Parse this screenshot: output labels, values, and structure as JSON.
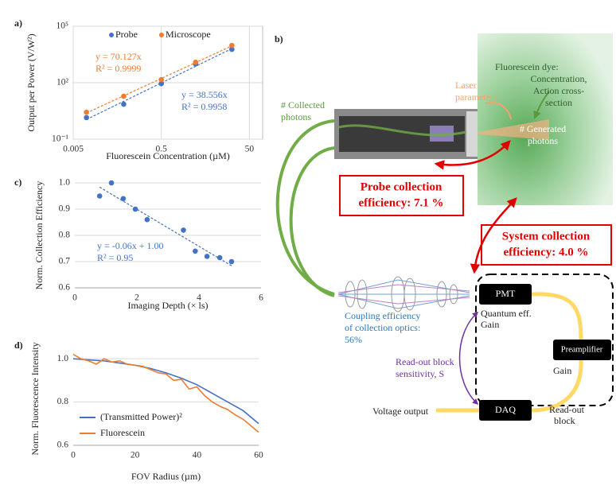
{
  "chart_data": [
    {
      "type": "scatter",
      "panel": "a)",
      "xlabel": "Fluorescein Concentration (µM)",
      "ylabel": "Output per Power (V/W²)",
      "xlog": true,
      "ylog": true,
      "xlim": [
        0.005,
        100
      ],
      "xticks": [
        0.005,
        0.5,
        50
      ],
      "ylim": [
        0.1,
        100000
      ],
      "yticks": [
        {
          "value": 0.1,
          "label": "10⁻¹"
        },
        {
          "value": 100,
          "label": "10²"
        },
        {
          "value": 100000,
          "label": "10⁵"
        }
      ],
      "grid": "both",
      "legend": "top",
      "trendline": true,
      "x": [
        0.01,
        0.07,
        0.5,
        3,
        20
      ],
      "series": [
        {
          "name": "Probe",
          "color": "#4472c4",
          "values": [
            1.4,
            7.2,
            89,
            1000,
            5900
          ],
          "equation": "y = 38.556x",
          "r2": "R² = 0.9958"
        },
        {
          "name": "Microscope",
          "color": "#ed7d31",
          "values": [
            2.7,
            19,
            145,
            1230,
            9500
          ],
          "equation": "y = 70.127x",
          "r2": "R² = 0.9999"
        }
      ]
    },
    {
      "type": "scatter",
      "panel": "c)",
      "xlabel": "Imaging Depth (× ls)",
      "ylabel": "Norm. Collection Efficiency",
      "xlim": [
        0,
        6
      ],
      "xticks": [
        0,
        2,
        4,
        6
      ],
      "ylim": [
        0.6,
        1.0
      ],
      "yticks": [
        0.6,
        0.7,
        0.8,
        0.9,
        {
          "value": 1,
          "label": "1.0"
        }
      ],
      "grid": "y",
      "trendline": true,
      "color": "#4472c4",
      "x": [
        0.8,
        1.18,
        1.56,
        1.95,
        2.33,
        3.5,
        3.88,
        4.26,
        4.67,
        5.05
      ],
      "values": [
        0.95,
        1.0,
        0.94,
        0.9,
        0.86,
        0.82,
        0.74,
        0.72,
        0.715,
        0.7
      ],
      "equation": "y = -0.06x + 1.00",
      "r2": "R² = 0.95"
    },
    {
      "type": "line",
      "panel": "d)",
      "xlabel": "FOV Radius (µm)",
      "ylabel": "Norm. Fluorescence Intensity",
      "xlim": [
        0,
        60
      ],
      "xticks": [
        0,
        20,
        40,
        60
      ],
      "ylim": [
        0.6,
        1.03
      ],
      "yticks": [
        0.6,
        0.8,
        {
          "value": 1,
          "label": "1.0"
        }
      ],
      "grid": "y",
      "legend": "lower left",
      "series": [
        {
          "name": "(Transmitted Power)²",
          "color": "#4472c4",
          "x": [
            0,
            5,
            10,
            15,
            20,
            25,
            30,
            35,
            40,
            45,
            50,
            55,
            60
          ],
          "values": [
            1.0,
            0.995,
            0.99,
            0.98,
            0.97,
            0.955,
            0.935,
            0.91,
            0.88,
            0.84,
            0.8,
            0.76,
            0.7
          ]
        },
        {
          "name": "Fluorescein",
          "color": "#ed7d31",
          "x": [
            0,
            2.5,
            5,
            7.5,
            10,
            12.5,
            15,
            17.5,
            20,
            22.5,
            25,
            27.5,
            30,
            32.5,
            35,
            37.5,
            40,
            42.5,
            45,
            47.5,
            50,
            52.5,
            55,
            57.5,
            60
          ],
          "values": [
            1.02,
            1.0,
            0.99,
            0.975,
            1.0,
            0.985,
            0.99,
            0.975,
            0.97,
            0.965,
            0.95,
            0.935,
            0.93,
            0.9,
            0.905,
            0.86,
            0.87,
            0.83,
            0.8,
            0.78,
            0.765,
            0.74,
            0.72,
            0.69,
            0.66
          ]
        }
      ]
    }
  ],
  "diagram": {
    "panel": "b)",
    "collected_photons": [
      "# Collected",
      "photons"
    ],
    "laser_parameters": [
      "Laser",
      "parameters"
    ],
    "fluorescein_dye": [
      "Fluorescein dye:",
      "Concentration,",
      "Action cross-",
      "section"
    ],
    "generated_photons": [
      "# Generated",
      "photons"
    ],
    "probe_efficiency": [
      "Probe collection",
      "efficiency: 7.1 %"
    ],
    "system_efficiency": [
      "System collection",
      "efficiency: 4.0 %"
    ],
    "coupling_efficiency": [
      "Coupling efficiency",
      "of collection optics:",
      "56%"
    ],
    "pmt": "PMT",
    "pmt_notes": [
      "Quantum eff.",
      "Gain"
    ],
    "preamplifier": "Preamplifier",
    "preamp_note": "Gain",
    "daq": "DAQ",
    "readout_block": [
      "Read-out",
      "block"
    ],
    "sensitivity": [
      "Read-out block",
      "sensitivity, S"
    ],
    "voltage_output": "Voltage output"
  }
}
